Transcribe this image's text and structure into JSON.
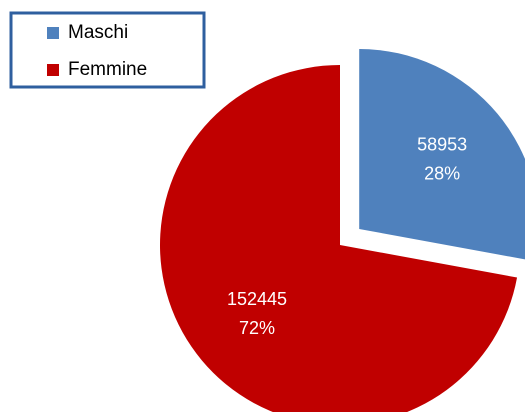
{
  "chart_data": {
    "type": "pie",
    "categories": [
      "Maschi",
      "Femmine"
    ],
    "values": [
      58953,
      152445
    ],
    "percent_labels": [
      "28%",
      "72%"
    ],
    "colors": [
      "#4f81bd",
      "#c00000"
    ],
    "exploded": [
      true,
      false
    ],
    "legend": "top-left"
  }
}
